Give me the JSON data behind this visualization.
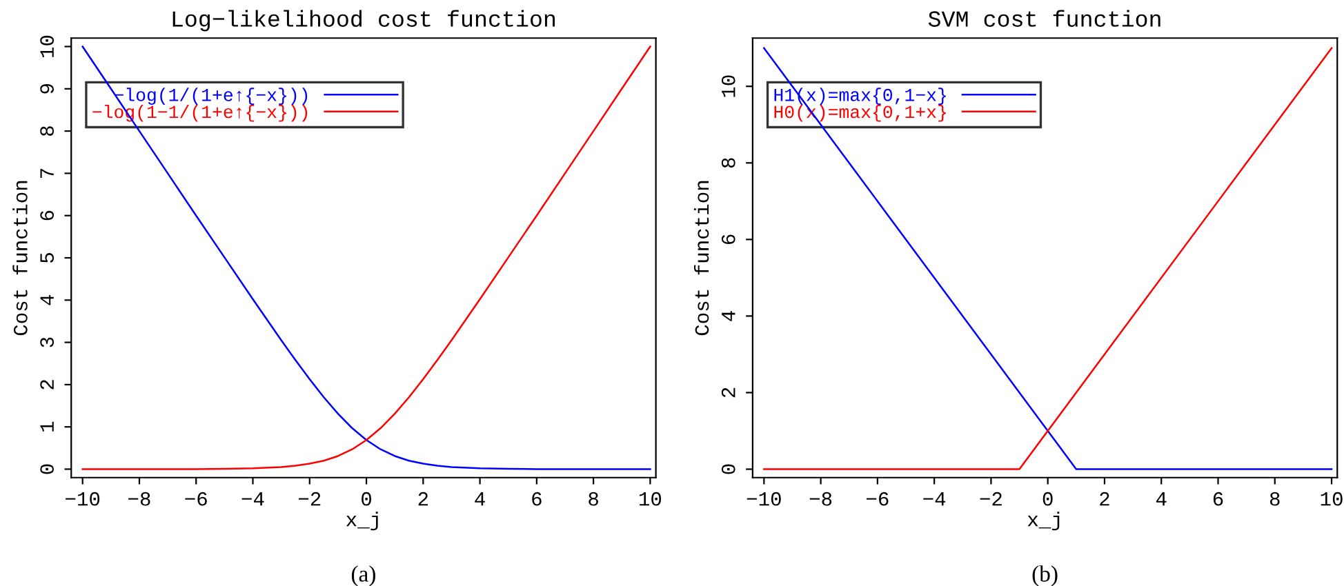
{
  "chart_data": [
    {
      "type": "line",
      "title": "Log−likelihood cost function",
      "xlabel": "x_j",
      "ylabel": "Cost function",
      "legend": "top left",
      "annotations": [
        "(a)"
      ],
      "xlim": [
        -10.4,
        10.2
      ],
      "ylim": [
        -0.2,
        10.2
      ],
      "xticks": [
        {
          "value": -10,
          "label": "−10"
        },
        {
          "value": -8,
          "label": "−8"
        },
        {
          "value": -6,
          "label": "−6"
        },
        {
          "value": -4,
          "label": "−4"
        },
        {
          "value": -2,
          "label": "−2"
        },
        0,
        2,
        4,
        6,
        8,
        10
      ],
      "yticks": [
        0,
        1,
        2,
        3,
        4,
        5,
        6,
        7,
        8,
        9,
        10
      ],
      "series": [
        {
          "name": "−log(1/(1+e↑{−x}))",
          "color": "#0000ff",
          "x": [
            -10,
            -9,
            -8,
            -7,
            -6,
            -5,
            -4,
            -3,
            -2.5,
            -2,
            -1.5,
            -1,
            -0.5,
            0,
            0.5,
            1,
            1.5,
            2,
            2.5,
            3,
            4,
            5,
            6,
            7,
            8,
            9,
            10
          ],
          "values": [
            10,
            9,
            8,
            7,
            6,
            5.01,
            4.02,
            3.05,
            2.58,
            2.13,
            1.7,
            1.31,
            0.97,
            0.69,
            0.47,
            0.31,
            0.2,
            0.13,
            0.08,
            0.05,
            0.02,
            0.01,
            0,
            0,
            0,
            0,
            0
          ]
        },
        {
          "name": "−log(1−1/(1+e↑{−x}))",
          "color": "#ff0000",
          "x": [
            -10,
            -9,
            -8,
            -7,
            -6,
            -5,
            -4,
            -3,
            -2.5,
            -2,
            -1.5,
            -1,
            -0.5,
            0,
            0.5,
            1,
            1.5,
            2,
            2.5,
            3,
            4,
            5,
            6,
            7,
            8,
            9,
            10
          ],
          "values": [
            0,
            0,
            0,
            0,
            0,
            0.01,
            0.02,
            0.05,
            0.08,
            0.13,
            0.2,
            0.31,
            0.47,
            0.69,
            0.97,
            1.31,
            1.7,
            2.13,
            2.58,
            3.05,
            4.02,
            5.01,
            6,
            7,
            8,
            9,
            10
          ]
        }
      ]
    },
    {
      "type": "line",
      "title": "SVM cost function",
      "xlabel": "x_j",
      "ylabel": "Cost function",
      "legend": "top left",
      "annotations": [
        "(b)"
      ],
      "xlim": [
        -10.4,
        10.2
      ],
      "ylim": [
        -0.22,
        11.26
      ],
      "xticks": [
        {
          "value": -10,
          "label": "−10"
        },
        {
          "value": -8,
          "label": "−8"
        },
        {
          "value": -6,
          "label": "−6"
        },
        {
          "value": -4,
          "label": "−4"
        },
        {
          "value": -2,
          "label": "−2"
        },
        0,
        2,
        4,
        6,
        8,
        10
      ],
      "yticks": [
        0,
        2,
        4,
        6,
        8,
        10
      ],
      "series": [
        {
          "name": "H1(x)=max{0,1−x}",
          "color": "#0000ff",
          "x": [
            -10,
            1,
            10
          ],
          "values": [
            11,
            0,
            0
          ]
        },
        {
          "name": "H0(x)=max{0,1+x}",
          "color": "#ff0000",
          "x": [
            -10,
            -1,
            10
          ],
          "values": [
            0,
            0,
            11
          ]
        }
      ]
    }
  ]
}
